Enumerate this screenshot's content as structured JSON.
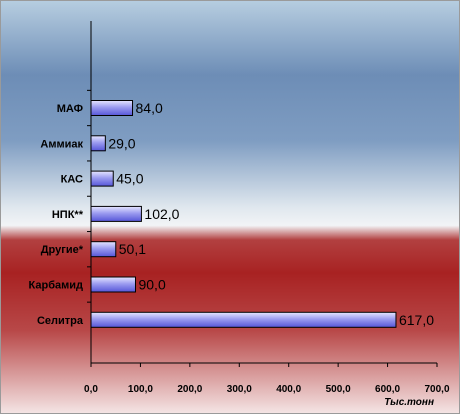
{
  "chart_data": {
    "type": "bar",
    "orientation": "horizontal",
    "categories": [
      "МАФ",
      "Аммиак",
      "КАС",
      "НПК**",
      "Другие*",
      "Карбамид",
      "Селитра"
    ],
    "values": [
      84.0,
      29.0,
      45.0,
      102.0,
      50.1,
      90.0,
      617.0
    ],
    "value_labels": [
      "84,0",
      "29,0",
      "45,0",
      "102,0",
      "50,1",
      "90,0",
      "617,0"
    ],
    "x_ticks": [
      "0,0",
      "100,0",
      "200,0",
      "300,0",
      "400,0",
      "500,0",
      "600,0",
      "700,0"
    ],
    "x_tick_values": [
      0,
      100,
      200,
      300,
      400,
      500,
      600,
      700
    ],
    "xlim": [
      0,
      700
    ],
    "xlabel": "Тыс.тонн",
    "ylabel": "",
    "title": "",
    "grid": false,
    "legend": "none",
    "colors": {
      "bar_fill_light": "#d8d8ff",
      "bar_fill_dark": "#6a6ae6",
      "bar_stroke": "#000000",
      "bg_top": "#aec7dc",
      "bg_blue": "#6f8fb8",
      "bg_light": "#eef3f6",
      "bg_red": "#b02a2a",
      "bg_bottom": "#f3dede"
    }
  }
}
